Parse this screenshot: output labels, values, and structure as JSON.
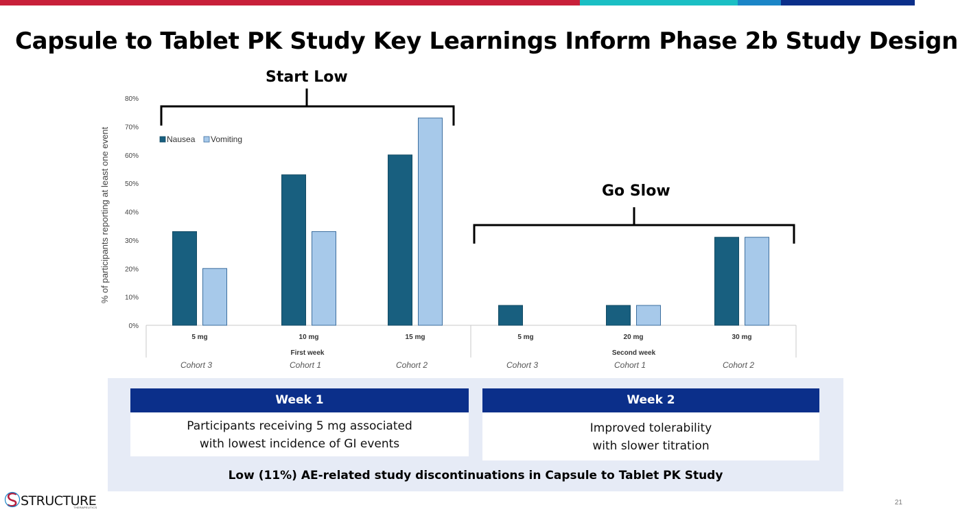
{
  "slide": {
    "title": "Capsule to Tablet PK Study Key Learnings Inform Phase 2b Study Design",
    "page_number": "21",
    "accent_colors": [
      "#c8203a",
      "#1bbfc4",
      "#1b85c7",
      "#0b2f8a"
    ]
  },
  "brackets": {
    "start_low": "Start Low",
    "go_slow": "Go Slow"
  },
  "chart_data": {
    "type": "bar",
    "ylabel": "% of participants reporting at least one event",
    "ylim": [
      0,
      80
    ],
    "y_ticks": [
      "0%",
      "10%",
      "20%",
      "30%",
      "40%",
      "50%",
      "60%",
      "70%",
      "80%"
    ],
    "categories": [
      "5 mg",
      "10 mg",
      "15 mg",
      "5 mg",
      "20 mg",
      "30 mg"
    ],
    "groups": [
      {
        "label": "First week",
        "span": [
          0,
          2
        ]
      },
      {
        "label": "Second week",
        "span": [
          3,
          5
        ]
      }
    ],
    "cohorts": [
      "Cohort 3",
      "Cohort 1",
      "Cohort 2",
      "Cohort 3",
      "Cohort 1",
      "Cohort 2"
    ],
    "legend_position": "top-left",
    "series": [
      {
        "name": "Nausea",
        "color": "#185f7f",
        "values": [
          33,
          53,
          60,
          7,
          7,
          31
        ]
      },
      {
        "name": "Vomiting",
        "color": "#a7c9ea",
        "values": [
          20,
          33,
          73,
          0,
          7,
          31
        ]
      }
    ]
  },
  "summary": {
    "week1": {
      "heading": "Week 1",
      "line1": "Participants receiving 5 mg associated",
      "line2": "with lowest incidence of GI events"
    },
    "week2": {
      "heading": "Week 2",
      "line1": "Improved tolerability",
      "line2": "with slower titration"
    },
    "bottom": "Low (11%) AE-related study discontinuations in Capsule to Tablet PK Study"
  },
  "logo": {
    "name": "STRUCTURE",
    "sub": "THERAPEUTICS"
  }
}
